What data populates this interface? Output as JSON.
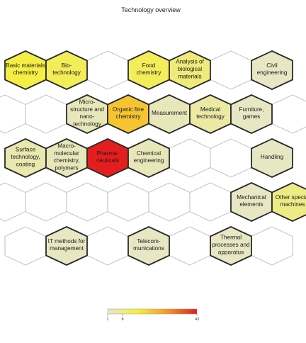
{
  "chart_data": {
    "type": "heatmap",
    "layout": "hexagonal-grid",
    "title": "Technology overview",
    "colorbar": {
      "min": 1,
      "max": 43,
      "ticks": [
        1,
        8,
        43
      ],
      "colors": [
        "#e6e6cf",
        "#f6ef3a",
        "#f39a28",
        "#e41e1e"
      ]
    },
    "cells": [
      {
        "row": 0,
        "col": 0,
        "label": "Basic materials\nchemistry",
        "value": 14
      },
      {
        "row": 0,
        "col": 1,
        "label": "Bio-\ntechnology",
        "value": 12
      },
      {
        "row": 0,
        "col": 2,
        "label": "",
        "value": null
      },
      {
        "row": 0,
        "col": 3,
        "label": "Food\nchemistry",
        "value": 12
      },
      {
        "row": 0,
        "col": 4,
        "label": "Analysis of\nbiological\nmaterials",
        "value": 9
      },
      {
        "row": 0,
        "col": 5,
        "label": "",
        "value": null
      },
      {
        "row": 0,
        "col": 6,
        "label": "Civil\nengineering",
        "value": 2
      },
      {
        "row": 1,
        "col": 0,
        "label": "",
        "value": null
      },
      {
        "row": 1,
        "col": 1,
        "label": "",
        "value": null
      },
      {
        "row": 1,
        "col": 2,
        "label": "Micro-\nstructure and\nnano-\ntechnology",
        "value": 3
      },
      {
        "row": 1,
        "col": 3,
        "label": "Organic fine\nchemistry",
        "value": 22
      },
      {
        "row": 1,
        "col": 4,
        "label": "Measurement",
        "value": 3
      },
      {
        "row": 1,
        "col": 5,
        "label": "Medical\ntechnology",
        "value": 5
      },
      {
        "row": 1,
        "col": 6,
        "label": "Furniture,\ngames",
        "value": 2
      },
      {
        "row": 1,
        "col": 7,
        "label": "",
        "value": null
      },
      {
        "row": 2,
        "col": 0,
        "label": "Surface\ntechnology,\ncoating",
        "value": 4
      },
      {
        "row": 2,
        "col": 1,
        "label": "Macro-\nmolecular\nchemistry,\npolymers",
        "value": 3
      },
      {
        "row": 2,
        "col": 2,
        "label": "Pharma-\nceuticals",
        "value": 43
      },
      {
        "row": 2,
        "col": 3,
        "label": "Chemical\nengineering",
        "value": 3
      },
      {
        "row": 2,
        "col": 4,
        "label": "",
        "value": null
      },
      {
        "row": 2,
        "col": 5,
        "label": "",
        "value": null
      },
      {
        "row": 2,
        "col": 6,
        "label": "Handling",
        "value": 2
      },
      {
        "row": 3,
        "col": 0,
        "label": "",
        "value": null
      },
      {
        "row": 3,
        "col": 1,
        "label": "",
        "value": null
      },
      {
        "row": 3,
        "col": 2,
        "label": "",
        "value": null
      },
      {
        "row": 3,
        "col": 3,
        "label": "",
        "value": null
      },
      {
        "row": 3,
        "col": 4,
        "label": "",
        "value": null
      },
      {
        "row": 3,
        "col": 5,
        "label": "",
        "value": null
      },
      {
        "row": 3,
        "col": 6,
        "label": "Mechanical\nelements",
        "value": 2
      },
      {
        "row": 3,
        "col": 7,
        "label": "Other special\nmachines",
        "value": 8
      },
      {
        "row": 4,
        "col": 0,
        "label": "",
        "value": null
      },
      {
        "row": 4,
        "col": 1,
        "label": "IT methods for\nmanagement",
        "value": 2
      },
      {
        "row": 4,
        "col": 2,
        "label": "",
        "value": null
      },
      {
        "row": 4,
        "col": 3,
        "label": "Telecom-\nmunications",
        "value": 2
      },
      {
        "row": 4,
        "col": 4,
        "label": "",
        "value": null
      },
      {
        "row": 4,
        "col": 5,
        "label": "Thermal\nprocesses and\napparatus",
        "value": 2
      },
      {
        "row": 4,
        "col": 6,
        "label": "",
        "value": null
      }
    ]
  }
}
